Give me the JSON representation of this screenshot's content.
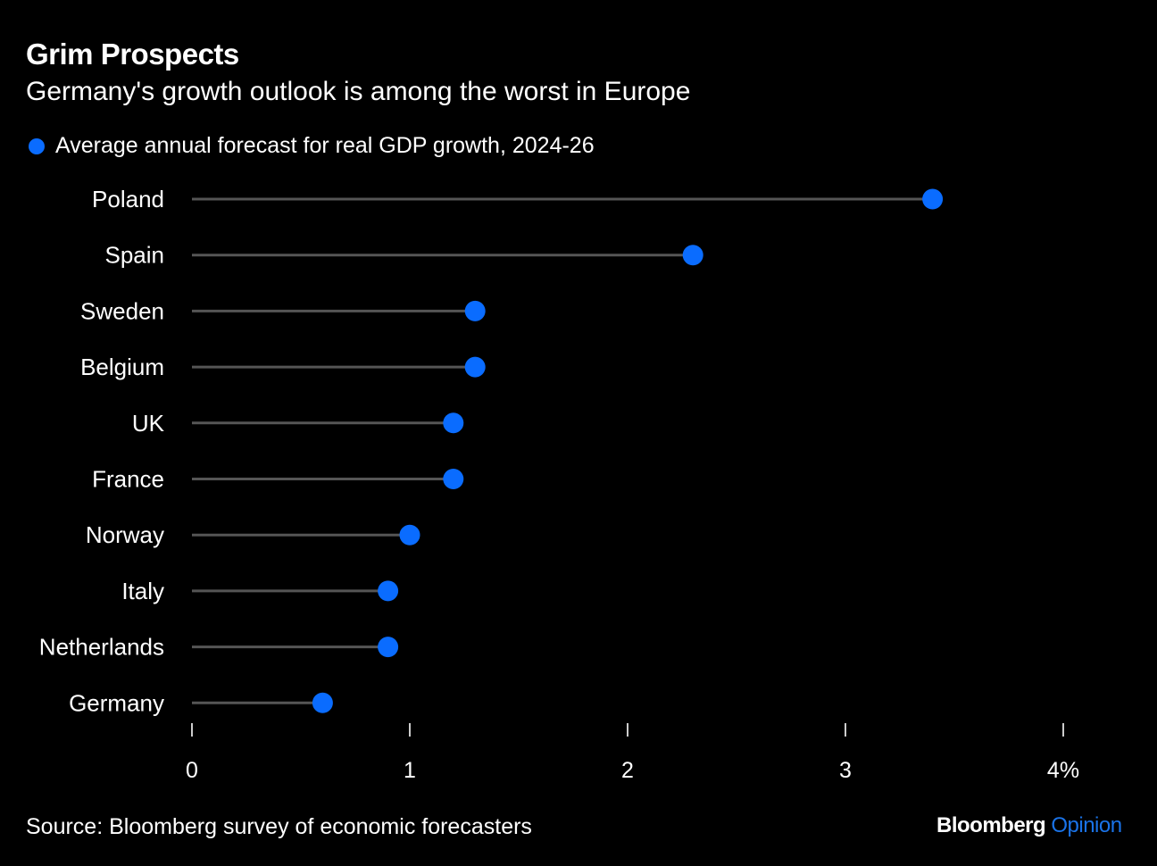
{
  "chart_data": {
    "type": "lollipop",
    "title": "Grim Prospects",
    "subtitle": "Germany's growth outlook is among the worst in Europe",
    "legend": "Average annual forecast for real GDP growth, 2024-26",
    "categories": [
      "Poland",
      "Spain",
      "Sweden",
      "Belgium",
      "UK",
      "France",
      "Norway",
      "Italy",
      "Netherlands",
      "Germany"
    ],
    "values": [
      3.4,
      2.3,
      1.3,
      1.3,
      1.2,
      1.2,
      1.0,
      0.9,
      0.9,
      0.6
    ],
    "xlim": [
      0,
      4
    ],
    "x_ticks": [
      "0",
      "1",
      "2",
      "3",
      "4%"
    ],
    "grid": false,
    "legend_position": "top-left",
    "colors": {
      "dot": "#0a6cff",
      "stem": "#555555",
      "background": "#000000"
    }
  },
  "footer": {
    "source": "Source: Bloomberg survey of economic forecasters",
    "logo_main": "Bloomberg",
    "logo_accent": "Opinion"
  }
}
